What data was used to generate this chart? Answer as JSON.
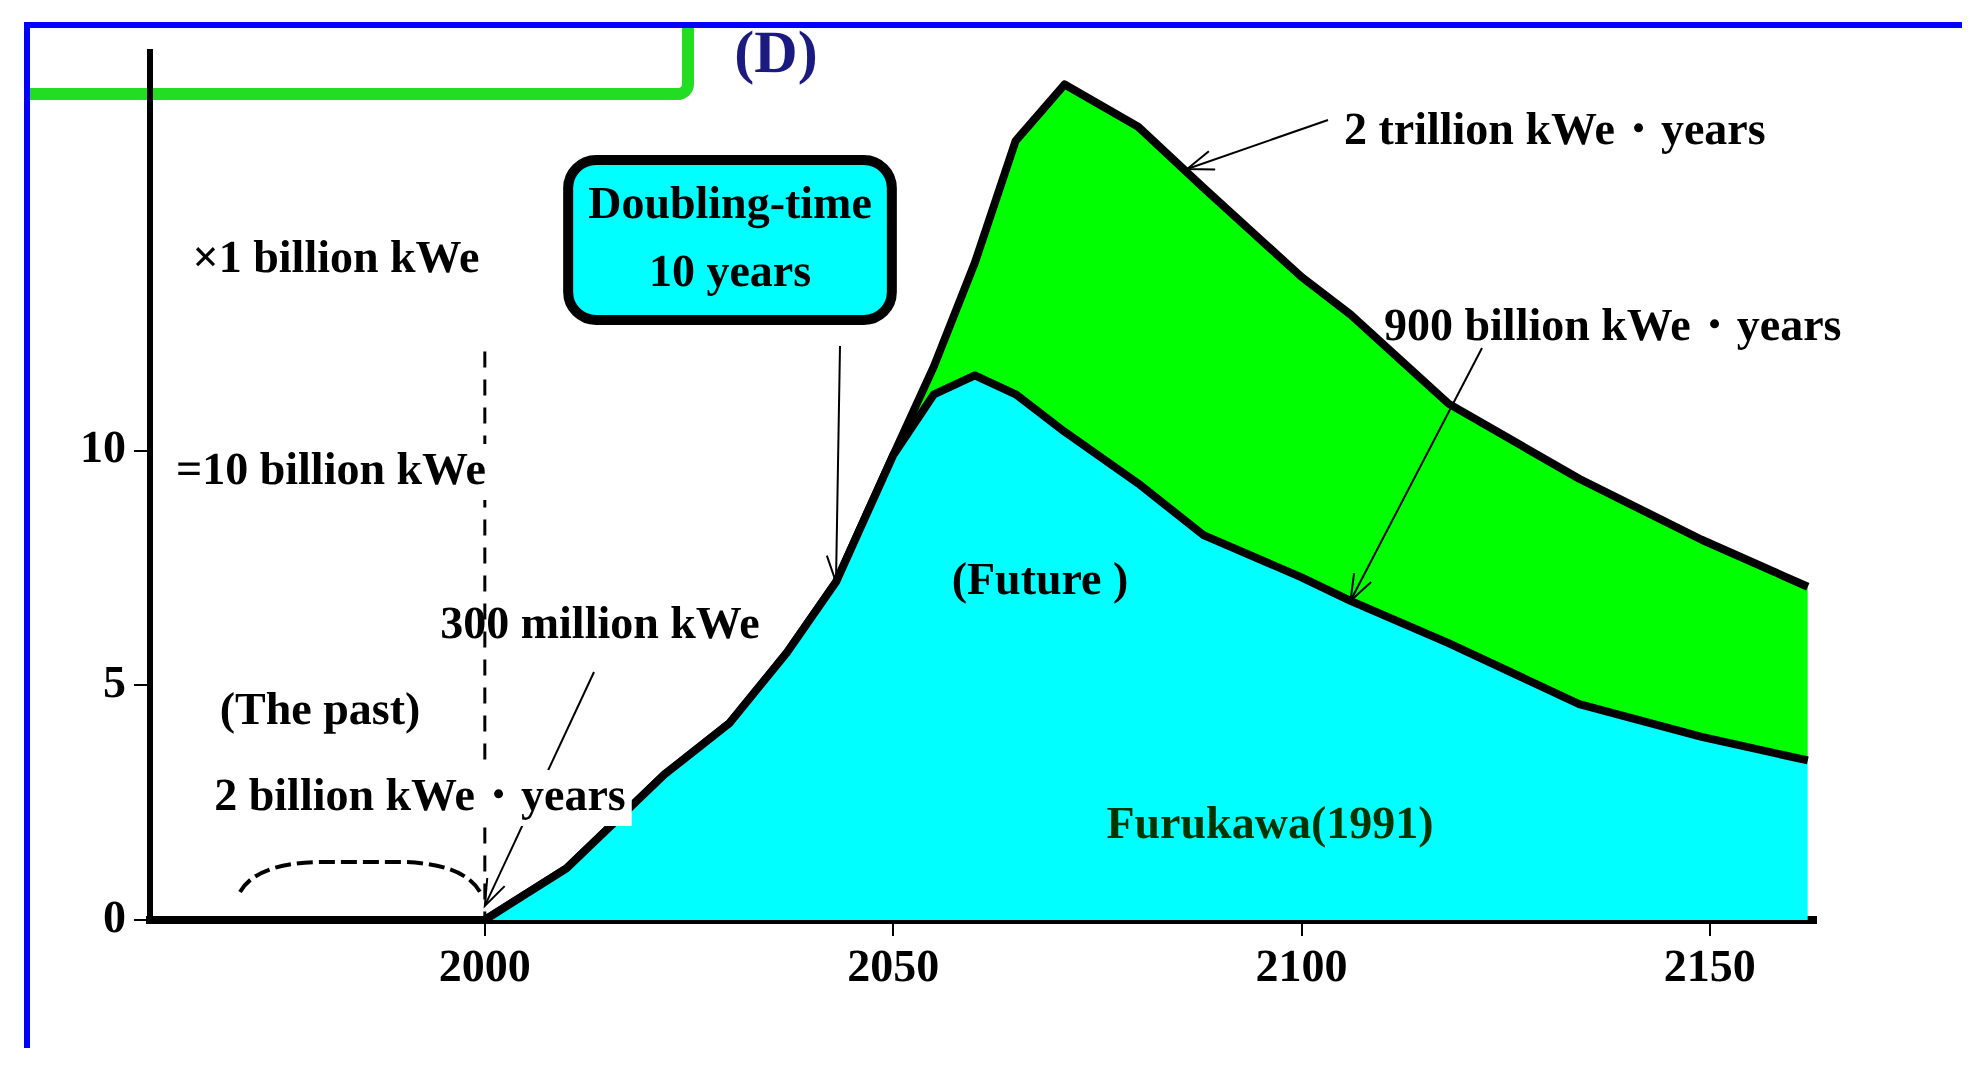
{
  "chart_data": {
    "type": "area",
    "title": "(D)",
    "ylabel": "×1 billion kWe",
    "x": [
      1969,
      2000,
      2010,
      2022,
      2030,
      2037,
      2043,
      2050,
      2055,
      2060,
      2065,
      2071,
      2080,
      2088,
      2100,
      2106,
      2118,
      2134,
      2149,
      2162
    ],
    "series": [
      {
        "color": "#00ffff",
        "values": [
          0,
          0,
          1.1,
          3.1,
          4.2,
          5.7,
          7.2,
          9.9,
          11.2,
          11.6,
          11.2,
          10.4,
          9.3,
          8.2,
          7.3,
          6.8,
          5.9,
          4.6,
          3.9,
          3.4
        ]
      },
      {
        "color": "#00ff00",
        "values": [
          0,
          0,
          1.1,
          3.1,
          4.2,
          5.7,
          7.2,
          9.9,
          11.8,
          14.0,
          16.6,
          17.8,
          16.9,
          15.6,
          13.7,
          12.9,
          11.0,
          9.4,
          8.1,
          7.1
        ]
      }
    ],
    "xlim": [
      1959,
      2163
    ],
    "xticks": [
      2000,
      2050,
      2100,
      2150
    ],
    "ylim": [
      0,
      18.5
    ],
    "yticks": [
      0,
      5,
      10
    ],
    "grid": false,
    "legend": false,
    "ref_lines": [
      {
        "axis": "x",
        "value": 2000,
        "line_style": "dashed"
      }
    ],
    "annotations": [
      "=10 billion kWe",
      {
        "text": "300 million kWe",
        "x": 2000,
        "y": 0.3
      },
      "(The past)",
      "2 billion kWe・years",
      {
        "text": "Doubling-time\n10 years",
        "x": 2043,
        "y": 7.2
      },
      "(Future )",
      "Furukawa(1991)",
      {
        "text": "2 trillion kWe・years",
        "x": 2086,
        "y": 16
      },
      {
        "text": "900 billion kWe・years",
        "x": 2106,
        "y": 6.8
      }
    ]
  }
}
